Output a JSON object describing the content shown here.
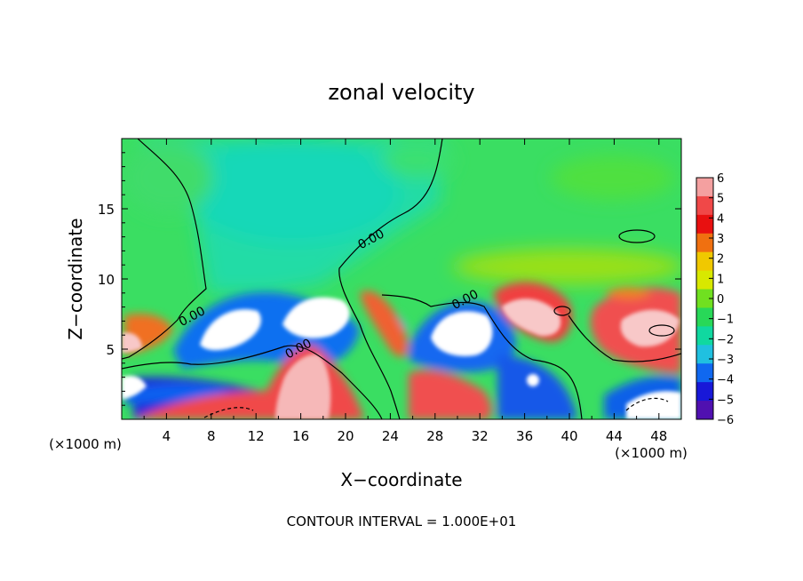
{
  "chart_data": {
    "type": "heatmap",
    "title": "zonal velocity",
    "xlabel": "X−coordinate",
    "ylabel": "Z−coordinate",
    "x_unit_left": "(×1000 m)",
    "x_unit_right": "(×1000 m)",
    "xlim": [
      0,
      50
    ],
    "ylim": [
      0,
      20
    ],
    "x_ticks": [
      4,
      8,
      12,
      16,
      20,
      24,
      28,
      32,
      36,
      40,
      44,
      48
    ],
    "y_ticks": [
      5,
      10,
      15
    ],
    "footer": "CONTOUR INTERVAL = 1.000E+01",
    "contour_labels": [
      {
        "text": "0.00",
        "x": 22.3,
        "z": 12.8
      },
      {
        "text": "0.00",
        "x": 30.7,
        "z": 8.5
      },
      {
        "text": "0.00",
        "x": 6.3,
        "z": 7.3
      },
      {
        "text": "0.00",
        "x": 15.8,
        "z": 5.0
      }
    ],
    "colorbar": {
      "levels": [
        6,
        5,
        4,
        3,
        2,
        1,
        0,
        -1,
        -2,
        -3,
        -4,
        -5,
        -6
      ],
      "colors": [
        "#f4a0a0",
        "#f04848",
        "#e81010",
        "#f07010",
        "#f0c800",
        "#d8e800",
        "#70e020",
        "#28d858",
        "#10d8a0",
        "#20c0e0",
        "#1068f0",
        "#1818d8",
        "#5010b0"
      ]
    },
    "colors": {
      "background_field": "#3ade62",
      "upper_mid": "#22dca6",
      "strong_positive": "#f6b8b8",
      "strong_negative": "#ffffff"
    }
  }
}
